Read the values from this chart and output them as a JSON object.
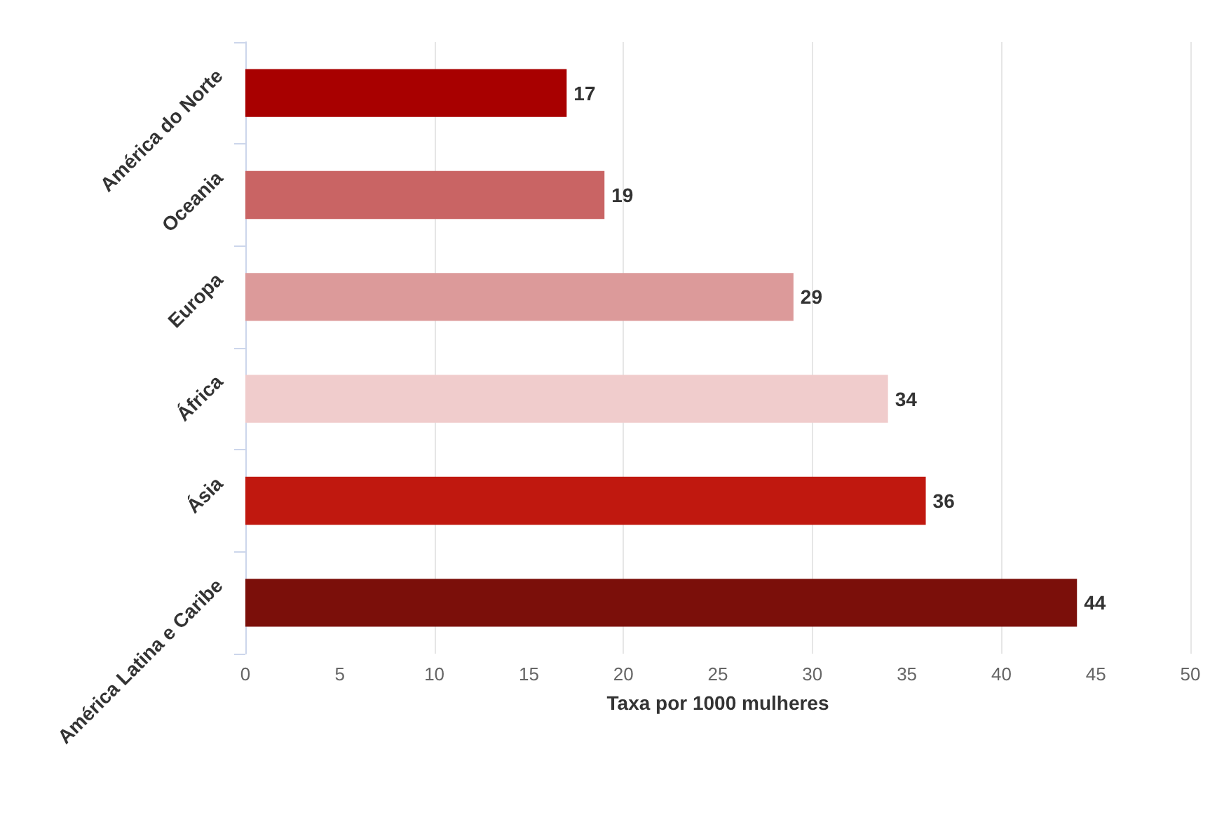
{
  "chart_data": {
    "type": "bar",
    "orientation": "horizontal",
    "xlabel": "Taxa por 1000 mulheres",
    "categories": [
      "América do Norte",
      "Oceania",
      "Europa",
      "África",
      "Ásia",
      "América Latina e Caribe"
    ],
    "values": [
      17,
      19,
      29,
      34,
      36,
      44
    ],
    "colors": [
      "#a80000",
      "#c96464",
      "#dc9a9a",
      "#f0cccc",
      "#c0180f",
      "#7b0f0a"
    ],
    "xlim": [
      0,
      50
    ],
    "xticks": [
      0,
      5,
      10,
      15,
      20,
      25,
      30,
      35,
      40,
      45,
      50
    ],
    "grid": "x",
    "data_labels": true
  }
}
